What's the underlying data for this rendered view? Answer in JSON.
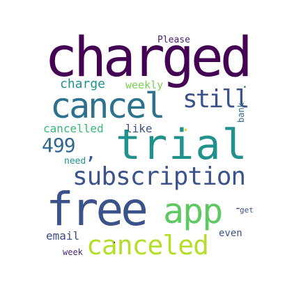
{
  "words": [
    {
      "key": "charged",
      "text": "charged",
      "color": "#440154"
    },
    {
      "key": "trial",
      "text": "trial",
      "color": "#21918c"
    },
    {
      "key": "free",
      "text": "free",
      "color": "#3b528b"
    },
    {
      "key": "cancel",
      "text": "cancel",
      "color": "#2c728e"
    },
    {
      "key": "subscription",
      "text": "subscription",
      "color": "#3b528b"
    },
    {
      "key": "app",
      "text": "app",
      "color": "#5ec962"
    },
    {
      "key": "canceled",
      "text": "canceled",
      "color": "#b5de2b"
    },
    {
      "key": "still",
      "text": "still",
      "color": "#3b528b"
    },
    {
      "key": "num499",
      "text": "499",
      "color": "#31688e"
    },
    {
      "key": "charge",
      "text": "charge",
      "color": "#21918c"
    },
    {
      "key": "cancelled",
      "text": "cancelled",
      "color": "#35b779"
    },
    {
      "key": "like",
      "text": "like",
      "color": "#3b528b"
    },
    {
      "key": "weekly",
      "text": "weekly",
      "color": "#7ad151"
    },
    {
      "key": "please",
      "text": "Please",
      "color": "#482173"
    },
    {
      "key": "email",
      "text": "email",
      "color": "#3e4989"
    },
    {
      "key": "week",
      "text": "week",
      "color": "#482878"
    },
    {
      "key": "even",
      "text": "even",
      "color": "#3b528b"
    },
    {
      "key": "get",
      "text": "get",
      "color": "#3b528b"
    },
    {
      "key": "need",
      "text": "need",
      "color": "#21918c"
    },
    {
      "key": "bank",
      "text": "bank",
      "color": "#31688e"
    },
    {
      "key": "comma",
      "text": ",",
      "color": "#3b528b"
    },
    {
      "key": "dot1",
      "text": ".",
      "color": "#2c728e"
    },
    {
      "key": "dot2",
      "text": ".",
      "color": "#c8e020"
    },
    {
      "key": "dot3",
      "text": ".",
      "color": "#482878"
    },
    {
      "key": "dash",
      "text": "-",
      "color": "#3b528b"
    }
  ]
}
